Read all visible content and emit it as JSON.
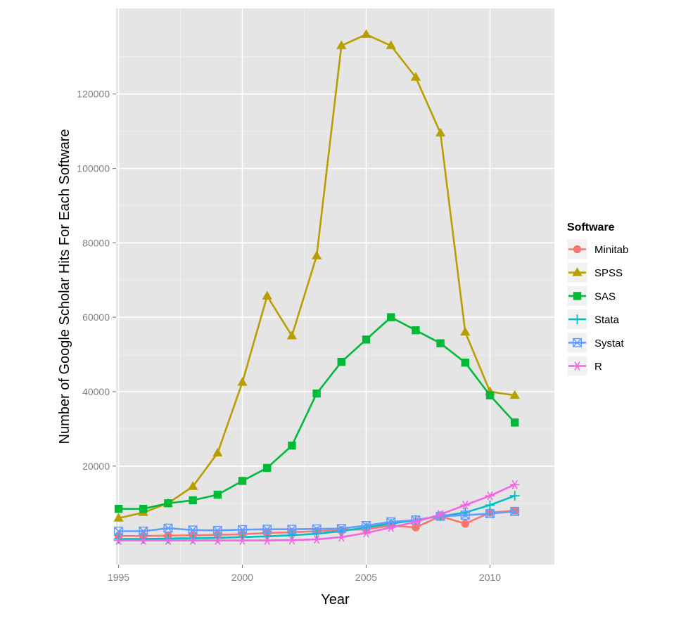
{
  "chart_data": {
    "type": "line",
    "title": "",
    "xlabel": "Year",
    "ylabel": "Number of Google Scholar Hits For Each Software",
    "x": [
      1995,
      1996,
      1997,
      1998,
      1999,
      2000,
      2001,
      2002,
      2003,
      2004,
      2005,
      2006,
      2007,
      2008,
      2009,
      2010,
      2011
    ],
    "xlim": [
      1994.9,
      2012.6
    ],
    "ylim": [
      -6500,
      143000
    ],
    "xticks": [
      1995,
      2000,
      2005,
      2010
    ],
    "yticks": [
      20000,
      40000,
      60000,
      80000,
      100000,
      120000
    ],
    "xtick_labels": [
      "1995",
      "2000",
      "2005",
      "2010"
    ],
    "ytick_labels": [
      "20000",
      "40000",
      "60000",
      "80000",
      "100000",
      "120000"
    ],
    "grid": true,
    "legend_position": "right",
    "legend_title": "Software",
    "series": [
      {
        "name": "Minitab",
        "color": "#F8766D",
        "marker": "circle",
        "values": [
          1200,
          1200,
          1300,
          1400,
          1500,
          1700,
          2000,
          2200,
          2500,
          2800,
          3000,
          4000,
          3500,
          6500,
          4500,
          7500,
          8000
        ]
      },
      {
        "name": "SPSS",
        "color": "#B79F00",
        "marker": "triangle",
        "values": [
          6000,
          7500,
          10000,
          14500,
          23500,
          42500,
          65700,
          55000,
          76500,
          133000,
          136000,
          133000,
          124500,
          109500,
          56000,
          40000,
          39000
        ]
      },
      {
        "name": "SAS",
        "color": "#00BA38",
        "marker": "square",
        "values": [
          8500,
          8500,
          10000,
          10800,
          12300,
          16000,
          19500,
          25500,
          39500,
          48000,
          54000,
          60000,
          56500,
          53000,
          47800,
          39000,
          31700
        ]
      },
      {
        "name": "Stata",
        "color": "#00BFC4",
        "marker": "plus",
        "values": [
          400,
          400,
          500,
          600,
          700,
          900,
          1100,
          1400,
          1800,
          2500,
          3500,
          4500,
          5500,
          6500,
          7500,
          9500,
          12000
        ]
      },
      {
        "name": "Systat",
        "color": "#619CFF",
        "marker": "square-x",
        "values": [
          2500,
          2500,
          3300,
          2800,
          2700,
          2900,
          3000,
          3000,
          3100,
          3200,
          4000,
          5000,
          5500,
          6500,
          6800,
          7200,
          7800
        ]
      },
      {
        "name": "R",
        "color": "#F564E3",
        "marker": "asterisk",
        "values": [
          0,
          0,
          0,
          0,
          0,
          0,
          0,
          100,
          300,
          900,
          2000,
          3500,
          5000,
          7000,
          9500,
          12000,
          15000
        ]
      }
    ]
  },
  "colors": {
    "panel_background": "#E5E5E5",
    "grid_major": "#FFFFFF",
    "grid_minor": "#F2F2F2",
    "tick_label": "#7F7F7F"
  }
}
